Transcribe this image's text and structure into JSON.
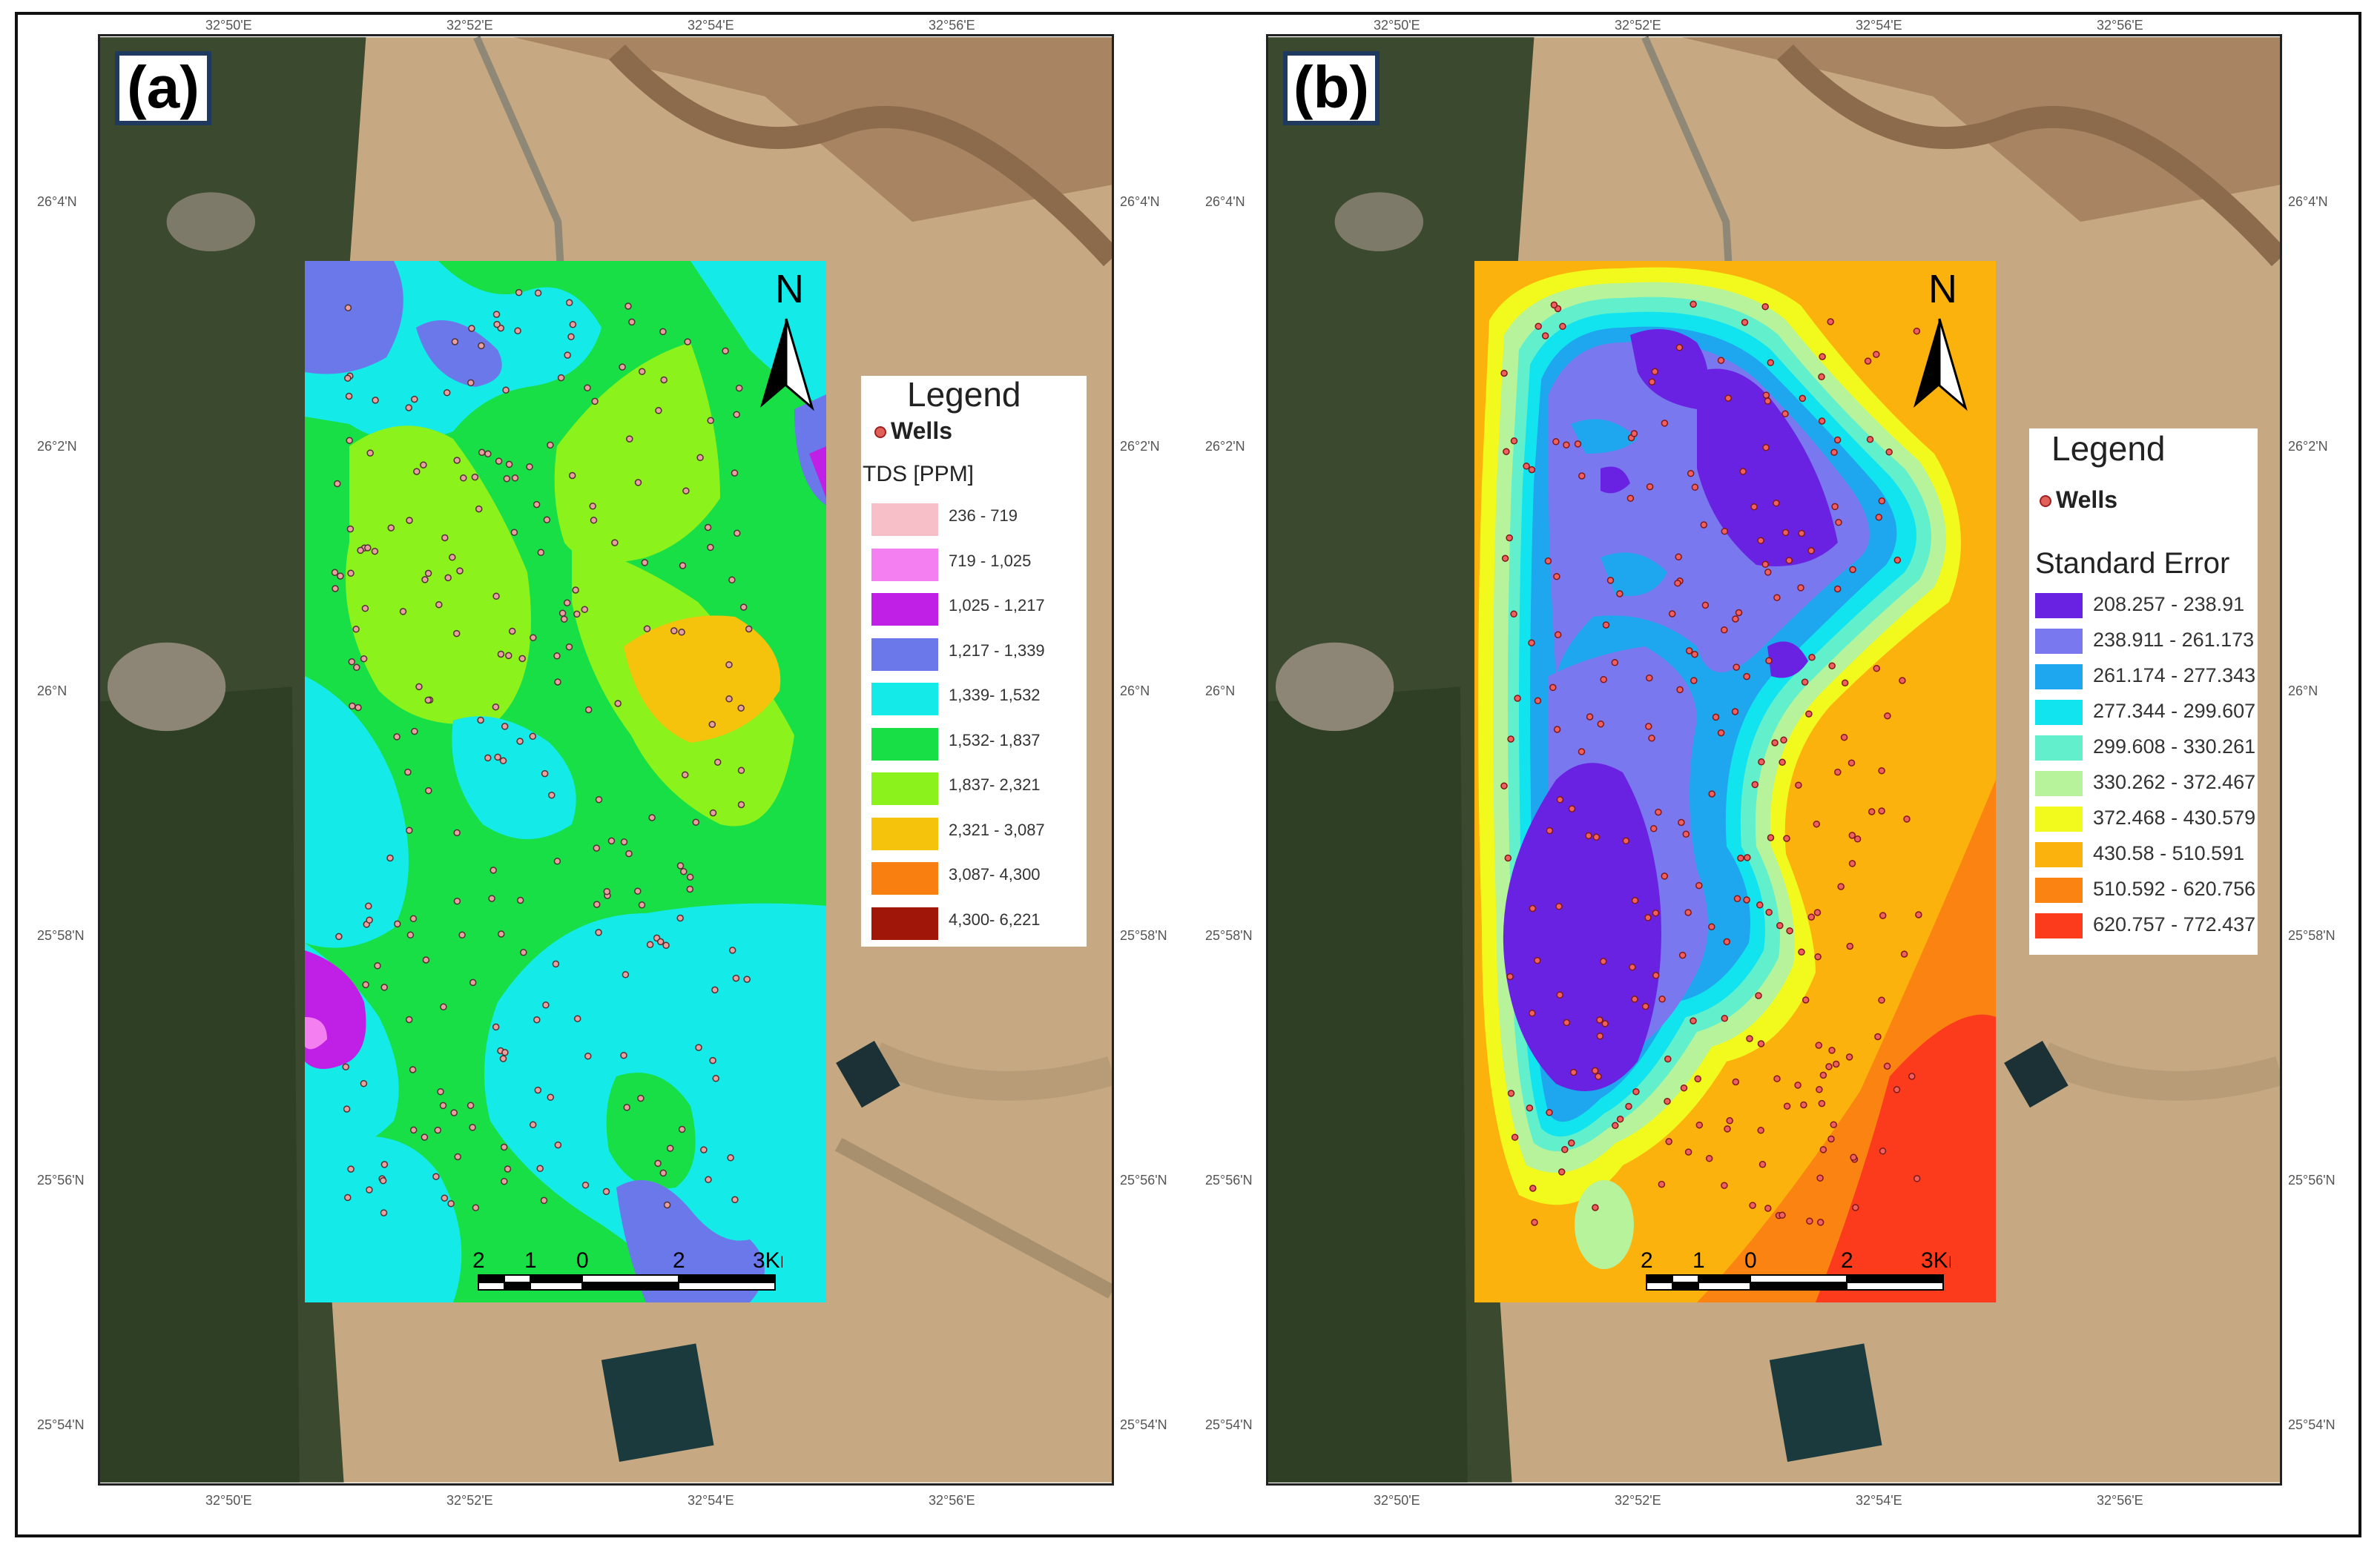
{
  "panels": [
    {
      "tag": "(a)",
      "legend_title": "Legend",
      "wells_label": "Wells",
      "layer_title": "TDS [PPM]",
      "classes": [
        {
          "label": "236 - 719",
          "color": "#f7c0c8"
        },
        {
          "label": "719 - 1,025",
          "color": "#f47ff0"
        },
        {
          "label": "1,025 - 1,217",
          "color": "#c020e6"
        },
        {
          "label": "1,217 - 1,339",
          "color": "#6b78ea"
        },
        {
          "label": "1,339- 1,532",
          "color": "#14eae8"
        },
        {
          "label": "1,532- 1,837",
          "color": "#19df47"
        },
        {
          "label": "1,837- 2,321",
          "color": "#8cf21b"
        },
        {
          "label": "2,321 - 3,087",
          "color": "#f5c20c"
        },
        {
          "label": "3,087- 4,300",
          "color": "#f97f10"
        },
        {
          "label": "4,300- 6,221",
          "color": "#a01608"
        }
      ],
      "north_label": "N",
      "scale_labels": [
        "2",
        "1",
        "0",
        "2",
        "3Km"
      ]
    },
    {
      "tag": "(b)",
      "legend_title": "Legend",
      "wells_label": "Wells",
      "layer_title": "Standard Error",
      "classes": [
        {
          "label": "208.257 - 238.91",
          "color": "#6a22e2"
        },
        {
          "label": "238.911 - 261.173",
          "color": "#7a78ee"
        },
        {
          "label": "261.174 - 277.343",
          "color": "#1ea7ee"
        },
        {
          "label": "277.344 - 299.607",
          "color": "#12e4ef"
        },
        {
          "label": "299.608 - 330.261",
          "color": "#62f0cc"
        },
        {
          "label": "330.262 - 372.467",
          "color": "#b6f39a"
        },
        {
          "label": "372.468 - 430.579",
          "color": "#f2f91c"
        },
        {
          "label": "430.58 - 510.591",
          "color": "#fbb20d"
        },
        {
          "label": "510.592 - 620.756",
          "color": "#fa8312"
        },
        {
          "label": "620.757 - 772.437",
          "color": "#fb3b1c"
        }
      ],
      "north_label": "N",
      "scale_labels": [
        "2",
        "1",
        "0",
        "2",
        "3Km"
      ]
    }
  ],
  "grid": {
    "lat_labels": [
      "26°4'N",
      "26°2'N",
      "26°N",
      "25°58'N",
      "25°56'N",
      "25°54'N"
    ],
    "lon_labels_top": [
      "32°50'E",
      "32°52'E",
      "32°54'E",
      "32°56'E"
    ],
    "lon_labels_bottom": [
      "32°50'E",
      "32°52'E",
      "32°54'E",
      "32°56'E"
    ]
  }
}
